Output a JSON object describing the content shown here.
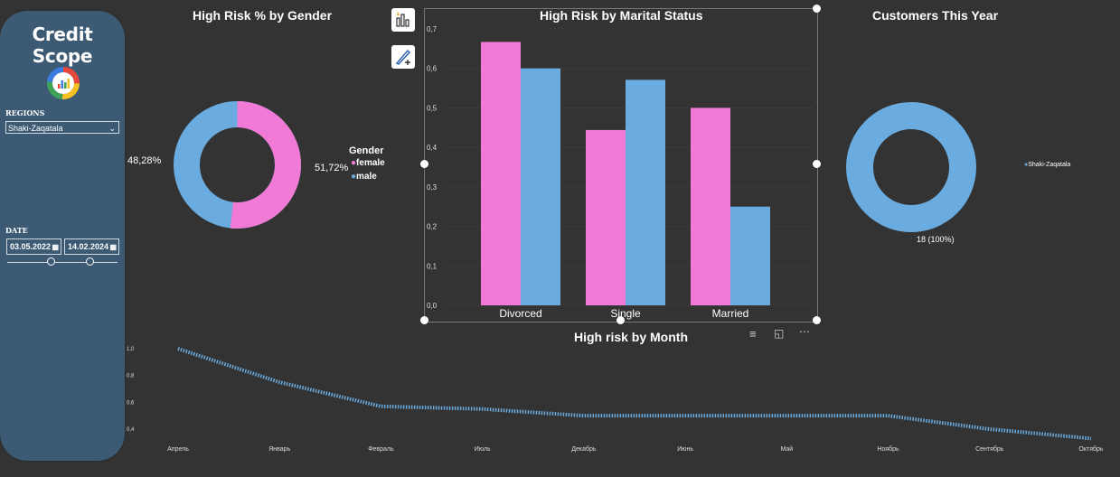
{
  "sidebar": {
    "title": "Credit Scope",
    "regions_label": "REGIONS",
    "region_selected": "Shaki-Zaqatala",
    "date_label": "DATE",
    "date_from": "03.05.2022",
    "date_to": "14.02.2024",
    "range_start": 0.4,
    "range_end": 0.75
  },
  "gender_chart": {
    "title": "High Risk % by Gender",
    "legend_title": "Gender",
    "slices": [
      {
        "label": "female",
        "pct_label": "51,72%",
        "value": 51.72,
        "color": "#f07ad6"
      },
      {
        "label": "male",
        "pct_label": "48,28%",
        "value": 48.28,
        "color": "#6aace0"
      }
    ]
  },
  "marital_chart": {
    "title": "High Risk by Marital Status"
  },
  "customers_chart": {
    "title": "Customers This Year",
    "legend_item": "Shaki-Zaqatala",
    "data_label": "18 (100%)",
    "color": "#6aace0"
  },
  "month_chart": {
    "title": "High risk by Month"
  },
  "chart_data": [
    {
      "type": "pie",
      "title": "High Risk % by Gender",
      "categories": [
        "female",
        "male"
      ],
      "values": [
        51.72,
        48.28
      ]
    },
    {
      "type": "bar",
      "title": "High Risk by Marital Status",
      "categories": [
        "Divorced",
        "Single",
        "Married"
      ],
      "series": [
        {
          "values": [
            0.667,
            0.444,
            0.5
          ],
          "color": "#f07ad6"
        },
        {
          "values": [
            0.6,
            0.571,
            0.25
          ],
          "color": "#6aace0"
        }
      ],
      "yticks": [
        "0,0",
        "0,1",
        "0,2",
        "0,3",
        "0,4",
        "0,5",
        "0,6",
        "0,7"
      ],
      "ylim": [
        0,
        0.7
      ]
    },
    {
      "type": "pie",
      "title": "Customers This Year",
      "categories": [
        "Shaki-Zaqatala"
      ],
      "values": [
        18
      ]
    },
    {
      "type": "line",
      "title": "High risk by Month",
      "categories": [
        "Апрель",
        "Январь",
        "Февраль",
        "Июль",
        "Декабрь",
        "Июнь",
        "Май",
        "Ноябрь",
        "Сентябрь",
        "Октябрь"
      ],
      "values": [
        1.0,
        0.75,
        0.57,
        0.55,
        0.5,
        0.5,
        0.5,
        0.5,
        0.4,
        0.33
      ],
      "yticks": [
        "0,4",
        "0,6",
        "0,8",
        "1,0"
      ],
      "ylim": [
        0.33,
        1.0
      ]
    }
  ]
}
